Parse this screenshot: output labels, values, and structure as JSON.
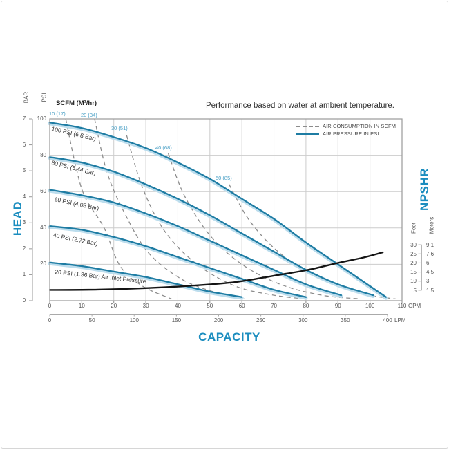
{
  "chart_data": {
    "type": "line",
    "title": "Performance based on water at ambient temperature.",
    "scfm_header": "SCFM (M³/hr)",
    "head_axis": {
      "label": "HEAD",
      "bar_label": "BAR",
      "psi_label": "PSI",
      "bar_ticks": [
        7,
        6,
        5,
        4,
        3,
        2,
        1,
        0
      ],
      "psi_ticks": [
        100,
        80,
        60,
        40,
        20
      ],
      "psi_range": [
        0,
        100
      ],
      "bar_range": [
        0,
        7
      ]
    },
    "capacity_axis": {
      "label": "CAPACITY",
      "gpm_unit": "GPM",
      "gpm_ticks": [
        0,
        10,
        20,
        30,
        40,
        50,
        60,
        70,
        80,
        90,
        100,
        110
      ],
      "lpm_unit": "LPM",
      "lpm_ticks": [
        0,
        50,
        100,
        150,
        200,
        250,
        300,
        350,
        400
      ],
      "gpm_range": [
        0,
        110
      ],
      "lpm_range": [
        0,
        400
      ]
    },
    "npshr_axis": {
      "label": "NPSHR",
      "feet_label": "Feet",
      "meters_label": "Meters",
      "feet_ticks": [
        30,
        25,
        20,
        15,
        10,
        5
      ],
      "meters_ticks": [
        "9.1",
        "7.6",
        "6",
        "4.5",
        "3",
        "1.5"
      ]
    },
    "legend": [
      {
        "label": "AIR CONSUMPTION IN SCFM",
        "style": "dashed",
        "color": "#8c8c8c"
      },
      {
        "label": "AIR PRESSURE IN PSI",
        "style": "solid",
        "color": "#1e7ca3"
      }
    ],
    "pressure_curves": [
      {
        "label": "100 PSI (6.8 Bar)",
        "points_gpm_psi": [
          [
            0,
            98
          ],
          [
            10,
            95
          ],
          [
            20,
            90
          ],
          [
            30,
            84
          ],
          [
            40,
            76
          ],
          [
            50,
            67
          ],
          [
            60,
            56
          ],
          [
            70,
            45
          ],
          [
            80,
            32
          ],
          [
            90,
            20
          ],
          [
            100,
            8
          ],
          [
            105,
            2
          ]
        ]
      },
      {
        "label": "80 PSI (5.44 Bar)",
        "points_gpm_psi": [
          [
            0,
            79
          ],
          [
            10,
            76
          ],
          [
            20,
            71
          ],
          [
            30,
            64
          ],
          [
            40,
            56
          ],
          [
            50,
            47
          ],
          [
            60,
            37
          ],
          [
            70,
            27
          ],
          [
            80,
            17
          ],
          [
            90,
            9
          ],
          [
            101,
            3
          ]
        ]
      },
      {
        "label": "60 PSI (4.08 Bar)",
        "points_gpm_psi": [
          [
            0,
            61
          ],
          [
            10,
            58
          ],
          [
            20,
            54
          ],
          [
            30,
            48
          ],
          [
            40,
            41
          ],
          [
            50,
            33
          ],
          [
            60,
            25
          ],
          [
            70,
            17
          ],
          [
            80,
            9
          ],
          [
            91,
            3
          ]
        ]
      },
      {
        "label": "40 PSI (2.72 Bar)",
        "points_gpm_psi": [
          [
            0,
            41
          ],
          [
            10,
            39
          ],
          [
            20,
            35
          ],
          [
            30,
            30
          ],
          [
            40,
            24
          ],
          [
            50,
            18
          ],
          [
            60,
            12
          ],
          [
            70,
            6
          ],
          [
            80,
            2
          ]
        ]
      },
      {
        "label": "20 PSI (1.36 Bar) Air Inlet Pressure",
        "points_gpm_psi": [
          [
            0,
            21
          ],
          [
            10,
            19
          ],
          [
            20,
            16
          ],
          [
            30,
            13
          ],
          [
            40,
            9
          ],
          [
            50,
            5
          ],
          [
            60,
            2
          ]
        ]
      }
    ],
    "air_consumption_lines": [
      {
        "label": "10 (17)",
        "points_gpm_psi": [
          [
            5,
            100
          ],
          [
            8,
            75
          ],
          [
            11,
            57
          ],
          [
            17,
            40
          ],
          [
            22,
            19
          ],
          [
            29,
            8
          ],
          [
            38,
            1
          ]
        ]
      },
      {
        "label": "20 (34)",
        "points_gpm_psi": [
          [
            14,
            100
          ],
          [
            18,
            70
          ],
          [
            24,
            46
          ],
          [
            31,
            26
          ],
          [
            41,
            12
          ],
          [
            51,
            5
          ],
          [
            61,
            1
          ]
        ]
      },
      {
        "label": "30 (51)",
        "points_gpm_psi": [
          [
            24,
            91
          ],
          [
            29,
            62
          ],
          [
            36,
            38
          ],
          [
            46,
            20
          ],
          [
            58,
            8
          ],
          [
            70,
            3
          ],
          [
            80,
            1
          ]
        ]
      },
      {
        "label": "40 (68)",
        "points_gpm_psi": [
          [
            37,
            81
          ],
          [
            42,
            58
          ],
          [
            50,
            36
          ],
          [
            60,
            20
          ],
          [
            72,
            9
          ],
          [
            85,
            3
          ],
          [
            97,
            1
          ]
        ]
      },
      {
        "label": "50 (85)",
        "points_gpm_psi": [
          [
            56,
            64
          ],
          [
            62,
            45
          ],
          [
            70,
            29
          ],
          [
            80,
            16
          ],
          [
            90,
            8
          ],
          [
            100,
            3
          ],
          [
            108,
            1
          ]
        ]
      }
    ],
    "npshr_curve": {
      "points_gpm_feet": [
        [
          0,
          5.2
        ],
        [
          15,
          5.4
        ],
        [
          30,
          6.2
        ],
        [
          45,
          7.6
        ],
        [
          58,
          9.5
        ],
        [
          70,
          13
        ],
        [
          80,
          16
        ],
        [
          90,
          20
        ],
        [
          98,
          23
        ],
        [
          104,
          25.8
        ]
      ]
    },
    "colors": {
      "curve_blue": "#1e7ca3",
      "curve_halo": "#bcdded",
      "accent_text": "#1b8dbf",
      "scfm_label_blue": "#4aa0c6",
      "dashed_gray": "#8c8c8c",
      "grid_gray": "#cccccc",
      "frame_gray": "#9a9a9a",
      "npshr_black": "#141414"
    }
  }
}
